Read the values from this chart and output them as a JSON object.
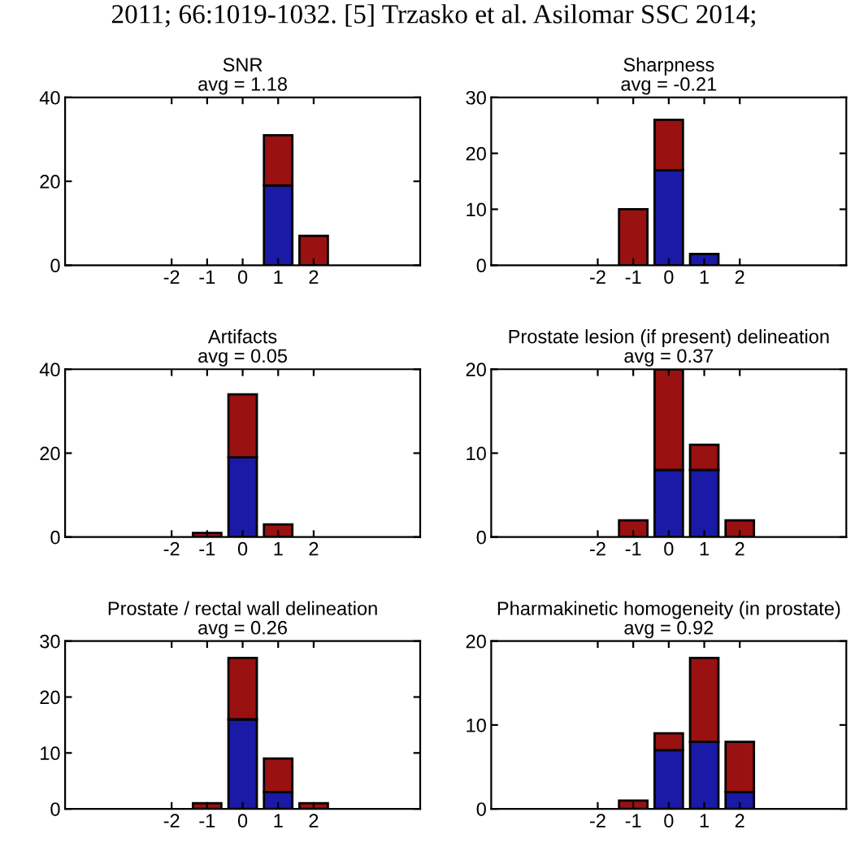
{
  "chart_data": [
    {
      "type": "bar",
      "title": "SNR",
      "subtitle": "avg = 1.18",
      "annotations": [
        "2011; 66:1019-1032. [5] Trzasko et al. Asilomar SSC 2014;"
      ],
      "stacked": true,
      "x": [
        -2,
        -1,
        0,
        1,
        2
      ],
      "xlim": [
        -5,
        5
      ],
      "xticks": [
        -2,
        -1,
        0,
        1,
        2
      ],
      "ylim": [
        0,
        40
      ],
      "yticks": [
        0,
        20,
        40
      ],
      "grid": false,
      "series": [
        {
          "color": "#1a1aa6",
          "values": [
            0,
            0,
            0,
            19,
            0
          ]
        },
        {
          "color": "#991111",
          "values": [
            0,
            0,
            0,
            12,
            7
          ]
        }
      ]
    },
    {
      "type": "bar",
      "title": "Sharpness",
      "subtitle": "avg = -0.21",
      "stacked": true,
      "x": [
        -2,
        -1,
        0,
        1,
        2
      ],
      "xlim": [
        -5,
        5
      ],
      "xticks": [
        -2,
        -1,
        0,
        1,
        2
      ],
      "ylim": [
        0,
        30
      ],
      "yticks": [
        0,
        10,
        20,
        30
      ],
      "grid": false,
      "series": [
        {
          "color": "#1a1aa6",
          "values": [
            0,
            0,
            17,
            2,
            0
          ]
        },
        {
          "color": "#991111",
          "values": [
            0,
            10,
            9,
            0,
            0
          ]
        }
      ]
    },
    {
      "type": "bar",
      "title": "Artifacts",
      "subtitle": "avg = 0.05",
      "stacked": true,
      "x": [
        -2,
        -1,
        0,
        1,
        2
      ],
      "xlim": [
        -5,
        5
      ],
      "xticks": [
        -2,
        -1,
        0,
        1,
        2
      ],
      "ylim": [
        0,
        40
      ],
      "yticks": [
        0,
        20,
        40
      ],
      "grid": false,
      "series": [
        {
          "color": "#1a1aa6",
          "values": [
            0,
            0,
            19,
            0,
            0
          ]
        },
        {
          "color": "#991111",
          "values": [
            0,
            1,
            15,
            3,
            0
          ]
        }
      ]
    },
    {
      "type": "bar",
      "title": "Prostate lesion (if present) delineation",
      "subtitle": "avg = 0.37",
      "stacked": true,
      "x": [
        -2,
        -1,
        0,
        1,
        2
      ],
      "xlim": [
        -5,
        5
      ],
      "xticks": [
        -2,
        -1,
        0,
        1,
        2
      ],
      "ylim": [
        0,
        20
      ],
      "yticks": [
        0,
        10,
        20
      ],
      "grid": false,
      "series": [
        {
          "color": "#1a1aa6",
          "values": [
            0,
            0,
            8,
            8,
            0
          ]
        },
        {
          "color": "#991111",
          "values": [
            0,
            2,
            12,
            3,
            2
          ]
        }
      ]
    },
    {
      "type": "bar",
      "title": "Prostate / rectal wall delineation",
      "subtitle": "avg = 0.26",
      "stacked": true,
      "x": [
        -2,
        -1,
        0,
        1,
        2
      ],
      "xlim": [
        -5,
        5
      ],
      "xticks": [
        -2,
        -1,
        0,
        1,
        2
      ],
      "ylim": [
        0,
        30
      ],
      "yticks": [
        0,
        10,
        20,
        30
      ],
      "grid": false,
      "series": [
        {
          "color": "#1a1aa6",
          "values": [
            0,
            0,
            16,
            3,
            0
          ]
        },
        {
          "color": "#991111",
          "values": [
            0,
            1,
            11,
            6,
            1
          ]
        }
      ]
    },
    {
      "type": "bar",
      "title": "Pharmakinetic homogeneity (in prostate)",
      "subtitle": "avg = 0.92",
      "stacked": true,
      "x": [
        -2,
        -1,
        0,
        1,
        2
      ],
      "xlim": [
        -5,
        5
      ],
      "xticks": [
        -2,
        -1,
        0,
        1,
        2
      ],
      "ylim": [
        0,
        20
      ],
      "yticks": [
        0,
        10,
        20
      ],
      "grid": false,
      "series": [
        {
          "color": "#1a1aa6",
          "values": [
            0,
            0,
            7,
            8,
            2
          ]
        },
        {
          "color": "#991111",
          "values": [
            0,
            1,
            2,
            10,
            6
          ]
        }
      ]
    }
  ]
}
